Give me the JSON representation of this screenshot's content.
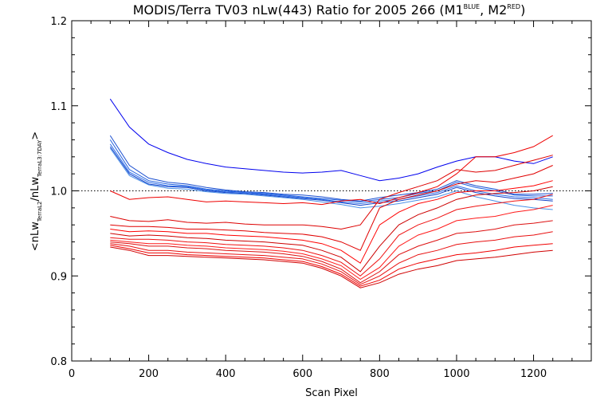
{
  "chart_data": {
    "type": "line",
    "title": "MODIS/Terra TV03 nLw(443) Ratio for 2005 266 (M1",
    "title_sup1": "BLUE",
    "title_mid": ", M2",
    "title_sup2": "RED",
    "title_end": ")",
    "xlabel": "Scan Pixel",
    "ylabel_parts": {
      "open": "<nLw",
      "sub1": "TerraL2",
      "mid": "/nLw",
      "sub2": "TerraL3:7DAY",
      "close": ">"
    },
    "xlim": [
      0,
      1350
    ],
    "ylim": [
      0.8,
      1.2
    ],
    "xticks": [
      0,
      200,
      400,
      600,
      800,
      1000,
      1200
    ],
    "xtick_labels": [
      "0",
      "200",
      "400",
      "600",
      "800",
      "1000",
      "1200"
    ],
    "yticks": [
      0.8,
      0.9,
      1.0,
      1.1,
      1.2
    ],
    "ytick_labels": [
      "0.8",
      "0.9",
      "1.0",
      "1.1",
      "1.2"
    ],
    "reference_line": 1.0,
    "x": [
      100,
      150,
      200,
      250,
      300,
      350,
      400,
      450,
      500,
      550,
      600,
      650,
      700,
      750,
      800,
      850,
      900,
      950,
      1000,
      1050,
      1100,
      1150,
      1200,
      1250
    ],
    "series": [
      {
        "color": "#0000ee",
        "values": [
          1.108,
          1.075,
          1.055,
          1.045,
          1.037,
          1.032,
          1.028,
          1.026,
          1.024,
          1.022,
          1.021,
          1.022,
          1.024,
          1.018,
          1.012,
          1.015,
          1.02,
          1.028,
          1.035,
          1.04,
          1.04,
          1.035,
          1.032,
          1.04
        ]
      },
      {
        "color": "#1a4fd0",
        "values": [
          1.065,
          1.03,
          1.015,
          1.01,
          1.008,
          1.004,
          1.001,
          0.999,
          0.998,
          0.996,
          0.995,
          0.993,
          0.99,
          0.988,
          0.992,
          0.995,
          0.998,
          1.002,
          1.012,
          1.006,
          1.002,
          0.996,
          0.996,
          0.997
        ]
      },
      {
        "color": "#2060e0",
        "values": [
          1.06,
          1.025,
          1.012,
          1.008,
          1.006,
          1.002,
          1.0,
          0.998,
          0.997,
          0.995,
          0.993,
          0.991,
          0.989,
          0.987,
          0.99,
          0.992,
          0.997,
          1.0,
          1.01,
          1.004,
          1.0,
          0.995,
          0.994,
          0.994
        ]
      },
      {
        "color": "#3070e8",
        "values": [
          1.055,
          1.022,
          1.01,
          1.006,
          1.005,
          1.001,
          0.999,
          0.998,
          0.996,
          0.994,
          0.992,
          0.99,
          0.987,
          0.985,
          0.988,
          0.99,
          0.994,
          0.998,
          1.006,
          1.0,
          0.996,
          0.993,
          0.992,
          0.99
        ]
      },
      {
        "color": "#1040c8",
        "values": [
          1.052,
          1.02,
          1.008,
          1.005,
          1.004,
          1.0,
          0.998,
          0.997,
          0.995,
          0.993,
          0.991,
          0.989,
          0.986,
          0.983,
          0.986,
          0.988,
          0.992,
          0.996,
          1.004,
          0.998,
          0.994,
          0.991,
          0.99,
          0.988
        ]
      },
      {
        "color": "#4a90e8",
        "values": [
          1.05,
          1.018,
          1.007,
          1.003,
          1.002,
          0.999,
          0.997,
          0.996,
          0.994,
          0.992,
          0.99,
          0.987,
          0.984,
          0.98,
          0.982,
          0.985,
          0.989,
          0.993,
          1.0,
          0.993,
          0.988,
          0.983,
          0.98,
          0.978
        ]
      },
      {
        "color": "#ee0000",
        "values": [
          1.0,
          0.99,
          0.992,
          0.993,
          0.99,
          0.987,
          0.988,
          0.987,
          0.986,
          0.985,
          0.986,
          0.984,
          0.988,
          0.99,
          0.985,
          0.992,
          0.998,
          1.005,
          1.02,
          1.04,
          1.04,
          1.045,
          1.052,
          1.065
        ]
      },
      {
        "color": "#dd0000",
        "values": [
          0.97,
          0.965,
          0.964,
          0.966,
          0.963,
          0.962,
          0.963,
          0.961,
          0.96,
          0.96,
          0.96,
          0.958,
          0.955,
          0.96,
          0.99,
          0.998,
          1.005,
          1.012,
          1.025,
          1.022,
          1.024,
          1.03,
          1.036,
          1.042
        ]
      },
      {
        "color": "#e00000",
        "values": [
          0.96,
          0.958,
          0.958,
          0.957,
          0.955,
          0.955,
          0.954,
          0.953,
          0.951,
          0.95,
          0.949,
          0.946,
          0.94,
          0.93,
          0.98,
          0.99,
          0.995,
          1.0,
          1.008,
          1.012,
          1.01,
          1.015,
          1.02,
          1.03
        ]
      },
      {
        "color": "#ff0000",
        "values": [
          0.955,
          0.952,
          0.953,
          0.952,
          0.95,
          0.95,
          0.948,
          0.947,
          0.946,
          0.944,
          0.942,
          0.938,
          0.93,
          0.915,
          0.96,
          0.975,
          0.985,
          0.99,
          0.998,
          1.0,
          1.0,
          1.003,
          1.006,
          1.012
        ]
      },
      {
        "color": "#cc0000",
        "values": [
          0.95,
          0.947,
          0.948,
          0.947,
          0.945,
          0.944,
          0.942,
          0.941,
          0.94,
          0.938,
          0.936,
          0.93,
          0.922,
          0.905,
          0.935,
          0.96,
          0.972,
          0.98,
          0.99,
          0.995,
          0.997,
          0.998,
          1.0,
          1.005
        ]
      },
      {
        "color": "#ee1010",
        "values": [
          0.945,
          0.943,
          0.943,
          0.942,
          0.94,
          0.939,
          0.937,
          0.936,
          0.935,
          0.933,
          0.93,
          0.924,
          0.916,
          0.9,
          0.92,
          0.948,
          0.96,
          0.968,
          0.978,
          0.982,
          0.985,
          0.988,
          0.99,
          0.996
        ]
      },
      {
        "color": "#ff1a1a",
        "values": [
          0.942,
          0.94,
          0.938,
          0.938,
          0.936,
          0.935,
          0.933,
          0.932,
          0.931,
          0.929,
          0.926,
          0.92,
          0.912,
          0.896,
          0.91,
          0.935,
          0.948,
          0.955,
          0.965,
          0.968,
          0.97,
          0.975,
          0.978,
          0.983
        ]
      },
      {
        "color": "#dd1010",
        "values": [
          0.94,
          0.938,
          0.935,
          0.935,
          0.933,
          0.932,
          0.93,
          0.929,
          0.928,
          0.926,
          0.923,
          0.917,
          0.908,
          0.892,
          0.905,
          0.925,
          0.935,
          0.942,
          0.95,
          0.952,
          0.955,
          0.96,
          0.962,
          0.965
        ]
      },
      {
        "color": "#e81010",
        "values": [
          0.938,
          0.935,
          0.93,
          0.93,
          0.928,
          0.927,
          0.926,
          0.925,
          0.924,
          0.922,
          0.92,
          0.914,
          0.905,
          0.89,
          0.9,
          0.915,
          0.925,
          0.93,
          0.937,
          0.94,
          0.942,
          0.946,
          0.948,
          0.952
        ]
      },
      {
        "color": "#f00000",
        "values": [
          0.936,
          0.932,
          0.927,
          0.927,
          0.925,
          0.924,
          0.923,
          0.922,
          0.921,
          0.919,
          0.917,
          0.911,
          0.902,
          0.888,
          0.895,
          0.908,
          0.915,
          0.92,
          0.925,
          0.927,
          0.93,
          0.934,
          0.936,
          0.938
        ]
      },
      {
        "color": "#d00000",
        "values": [
          0.934,
          0.93,
          0.924,
          0.924,
          0.923,
          0.922,
          0.921,
          0.92,
          0.919,
          0.917,
          0.915,
          0.909,
          0.9,
          0.886,
          0.892,
          0.902,
          0.908,
          0.912,
          0.918,
          0.92,
          0.922,
          0.925,
          0.928,
          0.93
        ]
      }
    ]
  }
}
